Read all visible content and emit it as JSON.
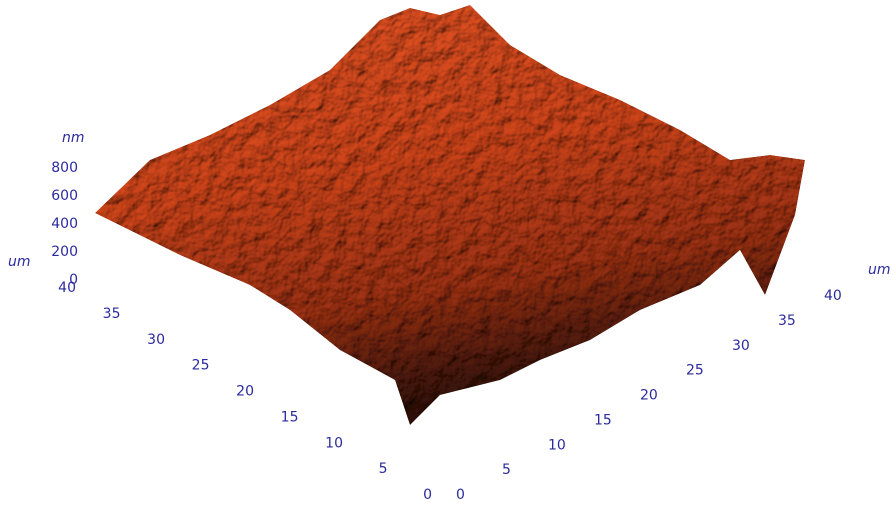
{
  "chart_data": {
    "type": "surface3d",
    "zlabel": "nm",
    "ylabel": "um",
    "xlabel": "um",
    "zlim": [
      0,
      800
    ],
    "zticks": [
      0,
      200,
      400,
      600,
      800
    ],
    "ylim": [
      0,
      40
    ],
    "yticks": [
      0,
      5,
      10,
      15,
      20,
      25,
      30,
      35,
      40
    ],
    "xlim": [
      0,
      40
    ],
    "xticks": [
      0,
      5,
      10,
      15,
      20,
      25,
      30,
      35,
      40
    ],
    "color": "#b5461f"
  }
}
